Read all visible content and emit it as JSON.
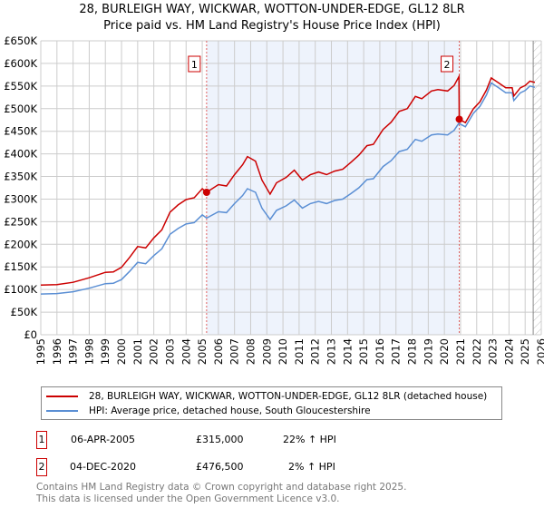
{
  "chart_data": {
    "type": "line",
    "title": "28, BURLEIGH WAY, WICKWAR, WOTTON-UNDER-EDGE, GL12 8LR",
    "subtitle": "Price paid vs. HM Land Registry's House Price Index (HPI)",
    "xlim": [
      1995,
      2026
    ],
    "ylim": [
      0,
      650000
    ],
    "x_ticks": [
      "1995",
      "1996",
      "1997",
      "1998",
      "1999",
      "2000",
      "2001",
      "2002",
      "2003",
      "2004",
      "2005",
      "2006",
      "2007",
      "2008",
      "2009",
      "2010",
      "2011",
      "2012",
      "2013",
      "2014",
      "2015",
      "2016",
      "2017",
      "2018",
      "2019",
      "2020",
      "2021",
      "2022",
      "2023",
      "2024",
      "2025",
      "2026"
    ],
    "y_ticks": [
      "£0",
      "£50K",
      "£100K",
      "£150K",
      "£200K",
      "£250K",
      "£300K",
      "£350K",
      "£400K",
      "£450K",
      "£500K",
      "£550K",
      "£600K",
      "£650K"
    ],
    "grid": true,
    "shaded_range": [
      2005.27,
      2020.92
    ],
    "hatched_from": 2025.5,
    "x": [
      1995,
      1996,
      1997,
      1998,
      1999,
      1999.5,
      2000,
      2000.5,
      2001,
      2001.5,
      2002,
      2002.5,
      2003,
      2003.5,
      2004,
      2004.5,
      2005,
      2005.27,
      2006,
      2006.5,
      2007,
      2007.5,
      2007.8,
      2008.3,
      2008.7,
      2009.2,
      2009.6,
      2010.2,
      2010.7,
      2011.2,
      2011.7,
      2012.2,
      2012.7,
      2013.2,
      2013.7,
      2014.2,
      2014.7,
      2015.2,
      2015.6,
      2016.2,
      2016.7,
      2017.2,
      2017.7,
      2018.2,
      2018.6,
      2019.2,
      2019.6,
      2020.2,
      2020.6,
      2020.9,
      2020.92,
      2021.3,
      2021.8,
      2022.2,
      2022.6,
      2022.9,
      2023.4,
      2023.8,
      2024.2,
      2024.3,
      2024.7,
      2025.0,
      2025.3,
      2025.6
    ],
    "series": [
      {
        "name": "28, BURLEIGH WAY, WICKWAR, WOTTON-UNDER-EDGE, GL12 8LR (detached house)",
        "color": "#cc0000",
        "values": [
          110,
          111,
          116,
          126,
          138,
          139,
          149,
          171,
          195,
          192,
          214,
          232,
          271,
          287,
          299,
          303,
          323,
          315,
          332,
          329,
          354,
          376,
          394,
          384,
          342,
          311,
          336,
          348,
          364,
          342,
          354,
          360,
          354,
          362,
          366,
          381,
          397,
          418,
          421,
          454,
          470,
          494,
          500,
          527,
          522,
          539,
          542,
          539,
          551,
          571,
          476.5,
          469,
          500,
          515,
          541,
          568,
          556,
          546,
          546,
          528,
          546,
          551,
          561,
          558
        ]
      },
      {
        "name": "HPI: Average price, detached house, South Gloucestershire",
        "color": "#5b8fd4",
        "values": [
          90,
          91,
          95,
          103,
          113,
          114,
          122,
          140,
          160,
          157,
          175,
          190,
          222,
          235,
          245,
          248,
          265,
          258,
          272,
          270,
          290,
          308,
          323,
          315,
          280,
          255,
          275,
          285,
          298,
          280,
          290,
          295,
          290,
          297,
          300,
          312,
          325,
          343,
          345,
          372,
          385,
          405,
          410,
          432,
          428,
          442,
          444,
          442,
          452,
          468,
          467,
          460,
          490,
          505,
          530,
          557,
          545,
          535,
          535,
          518,
          535,
          540,
          550,
          547
        ]
      }
    ],
    "y_units": "thousands GBP",
    "annotations": [
      {
        "label": "1",
        "x": 2005.27,
        "y": 315
      },
      {
        "label": "2",
        "x": 2020.92,
        "y": 476.5
      }
    ]
  },
  "legend": {
    "red_label": "28, BURLEIGH WAY, WICKWAR, WOTTON-UNDER-EDGE, GL12 8LR (detached house)",
    "blue_label": "HPI: Average price, detached house, South Gloucestershire"
  },
  "sales": [
    {
      "num": "1",
      "date": "06-APR-2005",
      "price": "£315,000",
      "hpi": "22% ↑ HPI"
    },
    {
      "num": "2",
      "date": "04-DEC-2020",
      "price": "£476,500",
      "hpi": "2% ↑ HPI"
    }
  ],
  "footer": {
    "line1": "Contains HM Land Registry data © Crown copyright and database right 2025.",
    "line2": "This data is licensed under the Open Government Licence v3.0."
  }
}
